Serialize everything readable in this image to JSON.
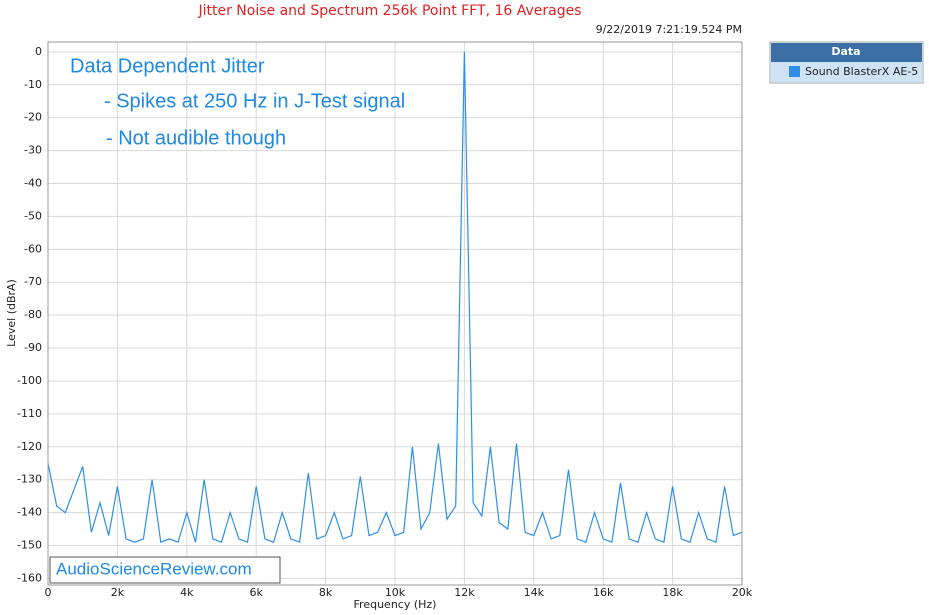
{
  "chart_data": {
    "type": "line",
    "title": "Jitter Noise and Spectrum 256k Point FFT, 16 Averages",
    "timestamp": "9/22/2019 7:21:19.524 PM",
    "xlabel": "Frequency (Hz)",
    "ylabel": "Level (dBrA)",
    "annotations": [
      "Data Dependent Jitter",
      "- Spikes at 250 Hz in J-Test signal",
      "- Not audible though"
    ],
    "watermark": "AudioScienceReview.com",
    "legend_title": "Data",
    "legend_position": "right",
    "grid": true,
    "xlim": [
      0,
      20000
    ],
    "ylim": [
      -162,
      3
    ],
    "xticks": [
      0,
      {
        "value": 2000,
        "label": "2k"
      },
      {
        "value": 4000,
        "label": "4k"
      },
      {
        "value": 6000,
        "label": "6k"
      },
      {
        "value": 8000,
        "label": "8k"
      },
      {
        "value": 10000,
        "label": "10k"
      },
      {
        "value": 12000,
        "label": "12k"
      },
      {
        "value": 14000,
        "label": "14k"
      },
      {
        "value": 16000,
        "label": "16k"
      },
      {
        "value": 18000,
        "label": "18k"
      },
      {
        "value": 20000,
        "label": "20k"
      }
    ],
    "yticks": [
      0,
      -10,
      -20,
      -30,
      -40,
      -50,
      -60,
      -70,
      -80,
      -90,
      -100,
      -110,
      -120,
      -130,
      -140,
      -150,
      -160
    ],
    "x": [
      0,
      250,
      500,
      750,
      1000,
      1250,
      1500,
      1750,
      2000,
      2250,
      2500,
      2750,
      3000,
      3250,
      3500,
      3750,
      4000,
      4250,
      4500,
      4750,
      5000,
      5250,
      5500,
      5750,
      6000,
      6250,
      6500,
      6750,
      7000,
      7250,
      7500,
      7750,
      8000,
      8250,
      8500,
      8750,
      9000,
      9250,
      9500,
      9750,
      10000,
      10250,
      10500,
      10750,
      11000,
      11250,
      11500,
      11750,
      12000,
      12250,
      12500,
      12750,
      13000,
      13250,
      13500,
      13750,
      14000,
      14250,
      14500,
      14750,
      15000,
      15250,
      15500,
      15750,
      16000,
      16250,
      16500,
      16750,
      17000,
      17250,
      17500,
      17750,
      18000,
      18250,
      18500,
      18750,
      19000,
      19250,
      19500,
      19750,
      20000
    ],
    "series": [
      {
        "name": "Sound BlasterX AE-5",
        "color": "#2f8fe8",
        "values": [
          -125,
          -138,
          -140,
          -133,
          -126,
          -146,
          -137,
          -147,
          -132,
          -148,
          -149,
          -148,
          -130,
          -149,
          -148,
          -149,
          -140,
          -149,
          -130,
          -148,
          -149,
          -140,
          -148,
          -149,
          -132,
          -148,
          -149,
          -140,
          -148,
          -149,
          -128,
          -148,
          -147,
          -140,
          -148,
          -147,
          -129,
          -147,
          -146,
          -140,
          -147,
          -146,
          -120,
          -145,
          -140,
          -119,
          -142,
          -138,
          0,
          -137,
          -141,
          -120,
          -143,
          -145,
          -119,
          -146,
          -147,
          -140,
          -148,
          -147,
          -127,
          -148,
          -149,
          -140,
          -148,
          -149,
          -131,
          -148,
          -149,
          -140,
          -148,
          -149,
          -132,
          -148,
          -149,
          -140,
          -148,
          -149,
          -132,
          -147,
          -146
        ]
      }
    ]
  }
}
